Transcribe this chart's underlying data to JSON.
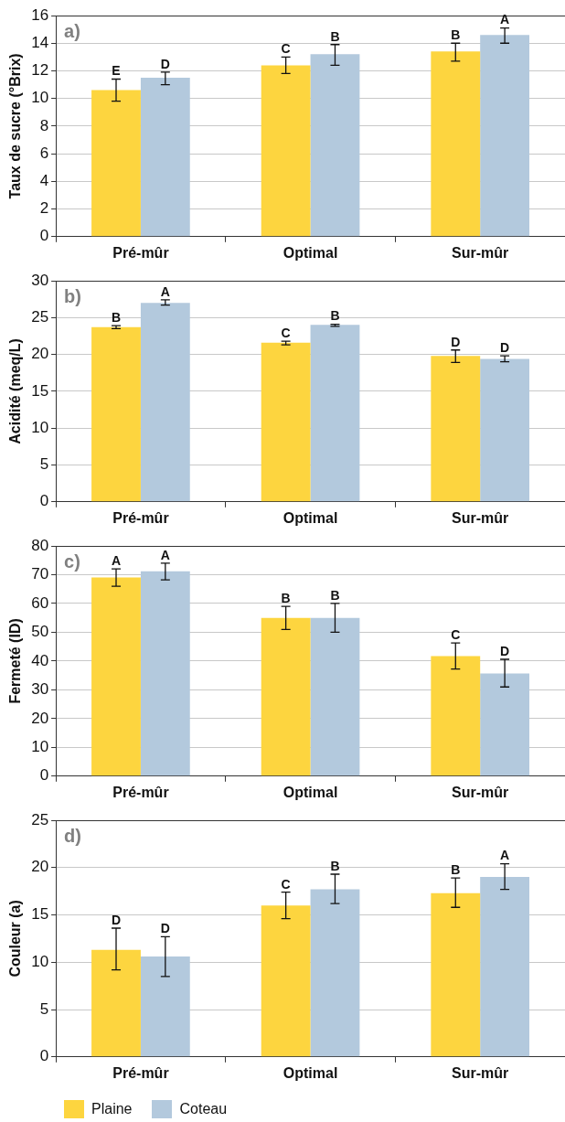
{
  "chart_data": [
    {
      "type": "bar",
      "ylabel": "Taux de sucre (°Brix)",
      "categories": [
        "Pré-mûr",
        "Optimal",
        "Sur-mûr"
      ],
      "series": [
        {
          "color": "#fdd53f",
          "values": [
            10.6,
            12.4,
            13.4
          ],
          "errors": [
            [
              9.8,
              11.4
            ],
            [
              11.8,
              13.0
            ],
            [
              12.7,
              14.0
            ]
          ],
          "value_labels": [
            "E",
            "C",
            "B"
          ]
        },
        {
          "color": "#b3c9dd",
          "values": [
            11.5,
            13.2,
            14.6
          ],
          "errors": [
            [
              11.0,
              11.9
            ],
            [
              12.4,
              13.9
            ],
            [
              14.0,
              15.1
            ]
          ],
          "value_labels": [
            "D",
            "B",
            "A"
          ]
        }
      ],
      "ylim": [
        0,
        16
      ],
      "yticks": [
        0,
        2,
        4,
        6,
        8,
        10,
        12,
        14,
        16
      ],
      "grid": "y",
      "legend": false,
      "annotations": [
        "a)"
      ]
    },
    {
      "type": "bar",
      "ylabel": "Acidité (meq/L)",
      "categories": [
        "Pré-mûr",
        "Optimal",
        "Sur-mûr"
      ],
      "series": [
        {
          "color": "#fdd53f",
          "values": [
            23.7,
            21.6,
            19.8
          ],
          "errors": [
            [
              23.5,
              23.9
            ],
            [
              21.3,
              21.8
            ],
            [
              18.9,
              20.6
            ]
          ],
          "value_labels": [
            "B",
            "C",
            "D"
          ]
        },
        {
          "color": "#b3c9dd",
          "values": [
            27.0,
            24.0,
            19.4
          ],
          "errors": [
            [
              26.7,
              27.4
            ],
            [
              23.8,
              24.1
            ],
            [
              19.0,
              19.8
            ]
          ],
          "value_labels": [
            "A",
            "B",
            "D"
          ]
        }
      ],
      "ylim": [
        0,
        30
      ],
      "yticks": [
        0,
        5,
        10,
        15,
        20,
        25,
        30
      ],
      "grid": "y",
      "legend": false,
      "annotations": [
        "b)"
      ]
    },
    {
      "type": "bar",
      "ylabel": "Fermeté (ID)",
      "categories": [
        "Pré-mûr",
        "Optimal",
        "Sur-mûr"
      ],
      "series": [
        {
          "color": "#fdd53f",
          "values": [
            69,
            55,
            41.7
          ],
          "errors": [
            [
              66,
              72
            ],
            [
              51,
              59
            ],
            [
              37.2,
              46.3
            ]
          ],
          "value_labels": [
            "A",
            "B",
            "C"
          ]
        },
        {
          "color": "#b3c9dd",
          "values": [
            71.2,
            55,
            35.7
          ],
          "errors": [
            [
              68.2,
              74
            ],
            [
              50,
              60
            ],
            [
              31,
              40.6
            ]
          ],
          "value_labels": [
            "A",
            "B",
            "D"
          ]
        }
      ],
      "ylim": [
        0,
        80
      ],
      "yticks": [
        0,
        10,
        20,
        30,
        40,
        50,
        60,
        70,
        80
      ],
      "grid": "y",
      "legend": false,
      "annotations": [
        "c)"
      ]
    },
    {
      "type": "bar",
      "ylabel": "Couleur (a)",
      "categories": [
        "Pré-mûr",
        "Optimal",
        "Sur-mûr"
      ],
      "series": [
        {
          "name": "Plaine",
          "color": "#fdd53f",
          "values": [
            11.3,
            16.0,
            17.3
          ],
          "errors": [
            [
              9.2,
              13.6
            ],
            [
              14.6,
              17.4
            ],
            [
              15.8,
              18.9
            ]
          ],
          "value_labels": [
            "D",
            "C",
            "B"
          ]
        },
        {
          "name": "Coteau",
          "color": "#b3c9dd",
          "values": [
            10.6,
            17.7,
            19.0
          ],
          "errors": [
            [
              8.5,
              12.7
            ],
            [
              16.2,
              19.3
            ],
            [
              17.7,
              20.4
            ]
          ],
          "value_labels": [
            "D",
            "B",
            "A"
          ]
        }
      ],
      "ylim": [
        0,
        25
      ],
      "yticks": [
        0,
        5,
        10,
        15,
        20,
        25
      ],
      "grid": "y",
      "legend": "bottom",
      "annotations": [
        "d)"
      ]
    }
  ]
}
